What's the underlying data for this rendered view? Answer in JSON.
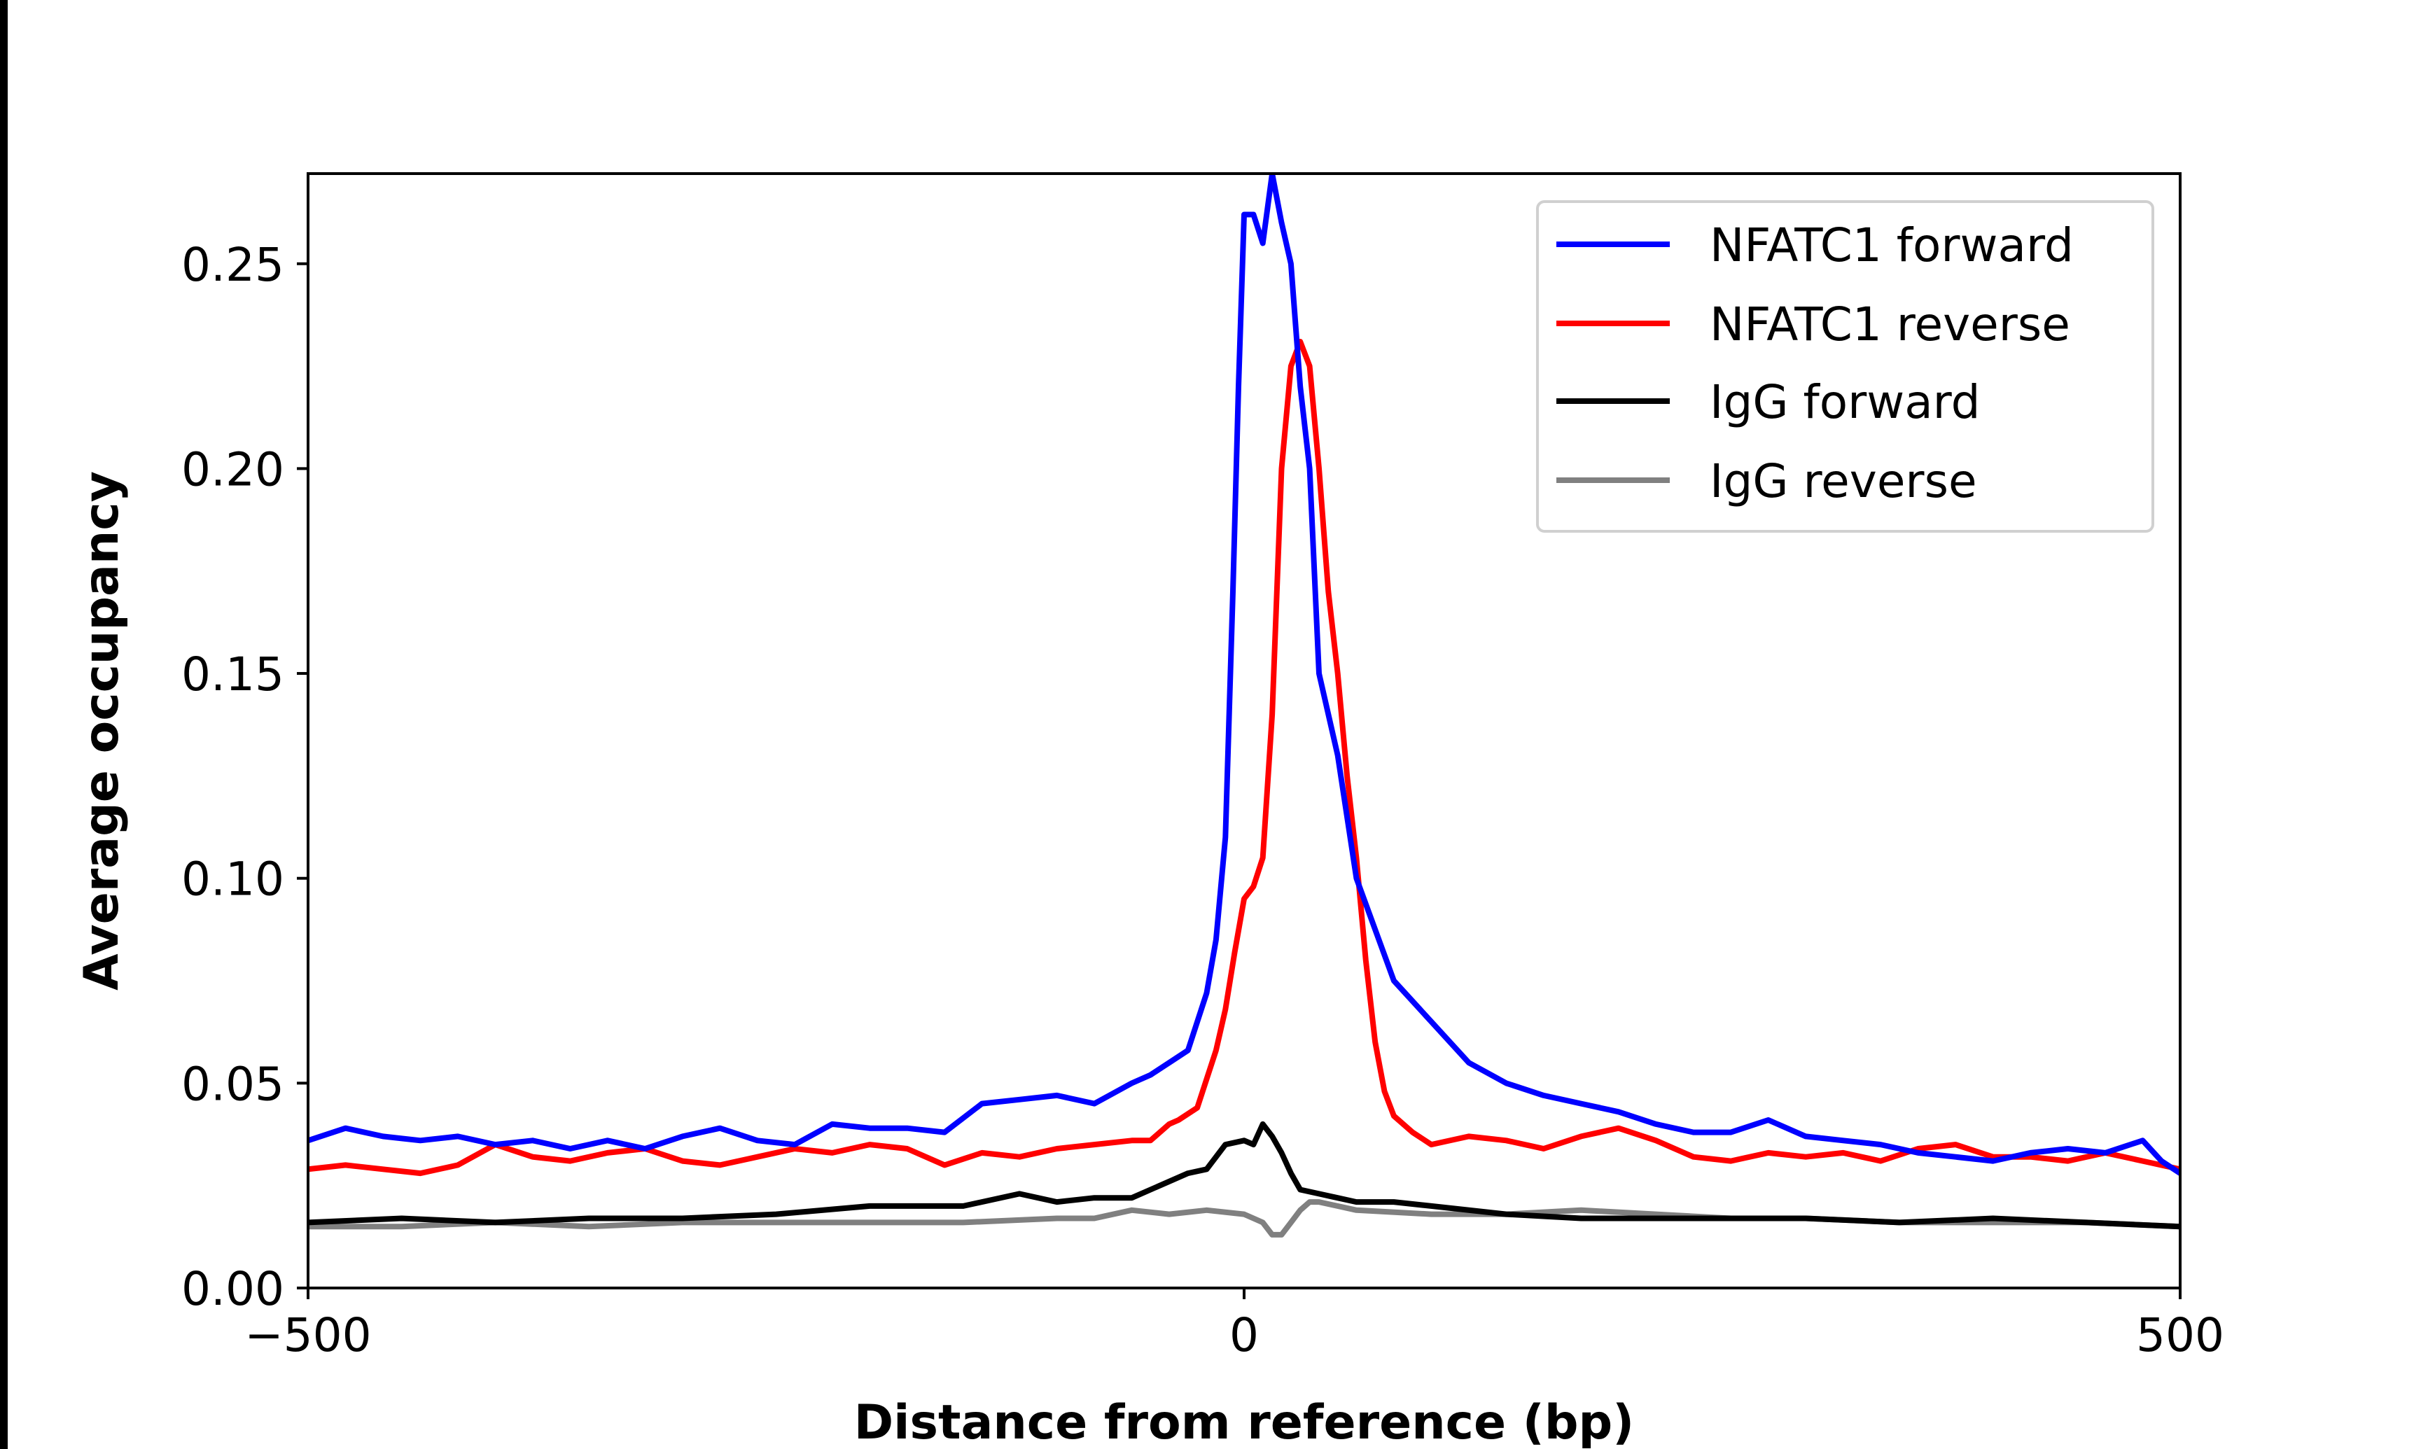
{
  "chart_data": {
    "type": "line",
    "title": "",
    "xlabel": "Distance from reference (bp)",
    "ylabel": "Average occupancy",
    "xlim": [
      -500,
      500
    ],
    "ylim": [
      0,
      0.272
    ],
    "xticks": [
      -500,
      0,
      500
    ],
    "xtick_labels": [
      "−500",
      "0",
      "500"
    ],
    "yticks": [
      0,
      0.05,
      0.1,
      0.15,
      0.2,
      0.25
    ],
    "ytick_labels": [
      "0.00",
      "0.05",
      "0.10",
      "0.15",
      "0.20",
      "0.25"
    ],
    "grid": false,
    "legend_placement": "upper right",
    "series": [
      {
        "name": "NFATC1 forward",
        "color": "#0000ff",
        "x": [
          -500,
          -480,
          -460,
          -440,
          -420,
          -400,
          -380,
          -360,
          -340,
          -320,
          -300,
          -280,
          -260,
          -240,
          -220,
          -200,
          -180,
          -160,
          -140,
          -120,
          -100,
          -80,
          -60,
          -50,
          -40,
          -30,
          -20,
          -15,
          -10,
          -6,
          -3,
          0,
          5,
          10,
          15,
          20,
          25,
          30,
          35,
          40,
          50,
          60,
          80,
          100,
          120,
          140,
          160,
          180,
          200,
          220,
          240,
          260,
          280,
          300,
          320,
          340,
          360,
          380,
          400,
          420,
          440,
          460,
          480,
          490,
          500
        ],
        "y": [
          0.036,
          0.039,
          0.037,
          0.036,
          0.037,
          0.035,
          0.036,
          0.034,
          0.036,
          0.034,
          0.037,
          0.039,
          0.036,
          0.035,
          0.04,
          0.039,
          0.039,
          0.038,
          0.045,
          0.046,
          0.047,
          0.045,
          0.05,
          0.052,
          0.055,
          0.058,
          0.072,
          0.085,
          0.11,
          0.17,
          0.22,
          0.262,
          0.262,
          0.255,
          0.272,
          0.26,
          0.25,
          0.22,
          0.2,
          0.15,
          0.13,
          0.1,
          0.075,
          0.065,
          0.055,
          0.05,
          0.047,
          0.045,
          0.043,
          0.04,
          0.038,
          0.038,
          0.041,
          0.037,
          0.036,
          0.035,
          0.033,
          0.032,
          0.031,
          0.033,
          0.034,
          0.033,
          0.036,
          0.031,
          0.028
        ]
      },
      {
        "name": "NFATC1 reverse",
        "color": "#ff0000",
        "x": [
          -500,
          -480,
          -460,
          -440,
          -420,
          -400,
          -380,
          -360,
          -340,
          -320,
          -300,
          -280,
          -260,
          -240,
          -220,
          -200,
          -180,
          -160,
          -140,
          -120,
          -100,
          -80,
          -60,
          -50,
          -40,
          -35,
          -25,
          -15,
          -10,
          -5,
          0,
          5,
          10,
          15,
          20,
          25,
          30,
          35,
          40,
          45,
          50,
          55,
          60,
          65,
          70,
          75,
          80,
          90,
          100,
          120,
          140,
          160,
          180,
          200,
          220,
          240,
          260,
          280,
          300,
          320,
          340,
          360,
          380,
          400,
          420,
          440,
          460,
          480,
          500
        ],
        "y": [
          0.029,
          0.03,
          0.029,
          0.028,
          0.03,
          0.035,
          0.032,
          0.031,
          0.033,
          0.034,
          0.031,
          0.03,
          0.032,
          0.034,
          0.033,
          0.035,
          0.034,
          0.03,
          0.033,
          0.032,
          0.034,
          0.035,
          0.036,
          0.036,
          0.04,
          0.041,
          0.044,
          0.058,
          0.068,
          0.082,
          0.095,
          0.098,
          0.105,
          0.14,
          0.2,
          0.225,
          0.231,
          0.225,
          0.2,
          0.17,
          0.15,
          0.125,
          0.105,
          0.08,
          0.06,
          0.048,
          0.042,
          0.038,
          0.035,
          0.037,
          0.036,
          0.034,
          0.037,
          0.039,
          0.036,
          0.032,
          0.031,
          0.033,
          0.032,
          0.033,
          0.031,
          0.034,
          0.035,
          0.032,
          0.032,
          0.031,
          0.033,
          0.031,
          0.029
        ]
      },
      {
        "name": "IgG forward",
        "color": "#000000",
        "x": [
          -500,
          -450,
          -400,
          -350,
          -300,
          -250,
          -200,
          -150,
          -120,
          -100,
          -80,
          -60,
          -40,
          -30,
          -20,
          -10,
          0,
          5,
          10,
          15,
          20,
          25,
          30,
          40,
          60,
          80,
          100,
          140,
          180,
          220,
          260,
          300,
          350,
          400,
          450,
          500
        ],
        "y": [
          0.016,
          0.017,
          0.016,
          0.017,
          0.017,
          0.018,
          0.02,
          0.02,
          0.023,
          0.021,
          0.022,
          0.022,
          0.026,
          0.028,
          0.029,
          0.035,
          0.036,
          0.035,
          0.04,
          0.037,
          0.033,
          0.028,
          0.024,
          0.023,
          0.021,
          0.021,
          0.02,
          0.018,
          0.017,
          0.017,
          0.017,
          0.017,
          0.016,
          0.017,
          0.016,
          0.015
        ]
      },
      {
        "name": "IgG reverse",
        "color": "#808080",
        "x": [
          -500,
          -450,
          -400,
          -350,
          -300,
          -250,
          -200,
          -150,
          -100,
          -80,
          -60,
          -40,
          -20,
          0,
          5,
          10,
          15,
          20,
          25,
          30,
          35,
          40,
          60,
          100,
          140,
          180,
          220,
          260,
          300,
          350,
          400,
          450,
          500
        ],
        "y": [
          0.015,
          0.015,
          0.016,
          0.015,
          0.016,
          0.016,
          0.016,
          0.016,
          0.017,
          0.017,
          0.019,
          0.018,
          0.019,
          0.018,
          0.017,
          0.016,
          0.013,
          0.013,
          0.016,
          0.019,
          0.021,
          0.021,
          0.019,
          0.018,
          0.018,
          0.019,
          0.018,
          0.017,
          0.017,
          0.016,
          0.016,
          0.016,
          0.015
        ]
      }
    ]
  }
}
